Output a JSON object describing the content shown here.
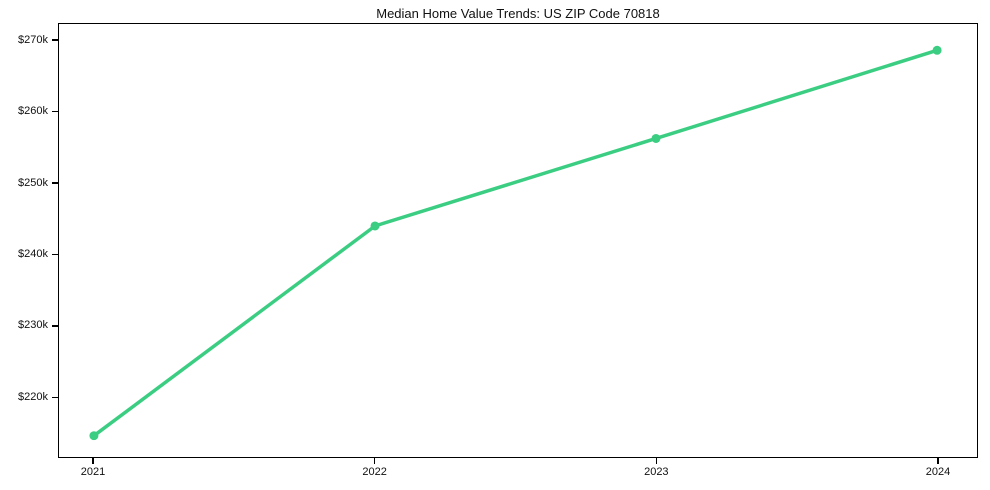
{
  "page": {
    "title": "Median Home Value Trends: US ZIP Code 70818"
  },
  "colors": {
    "line": "#3bce82",
    "marker": "#3bce82",
    "axis": "#000000",
    "text": "#111111",
    "background": "#ffffff"
  },
  "chart_data": {
    "type": "line",
    "title": "Median Home Value Trends: US ZIP Code 70818",
    "categories": [
      "2021",
      "2022",
      "2023",
      "2024"
    ],
    "series": [
      {
        "name": "Median Home Value",
        "values": [
          214500,
          244000,
          256300,
          268700
        ]
      }
    ],
    "xlabel": "",
    "ylabel": "",
    "ylim": [
      211500,
      272400
    ],
    "y_ticks": [
      {
        "value": 220000,
        "label": "$220k"
      },
      {
        "value": 230000,
        "label": "$230k"
      },
      {
        "value": 240000,
        "label": "$240k"
      },
      {
        "value": 250000,
        "label": "$250k"
      },
      {
        "value": 260000,
        "label": "$260k"
      },
      {
        "value": 270000,
        "label": "$270k"
      }
    ],
    "grid": false,
    "legend": "none",
    "marker_style": "circle",
    "line_width": 3.5,
    "marker_radius": 4.5
  }
}
